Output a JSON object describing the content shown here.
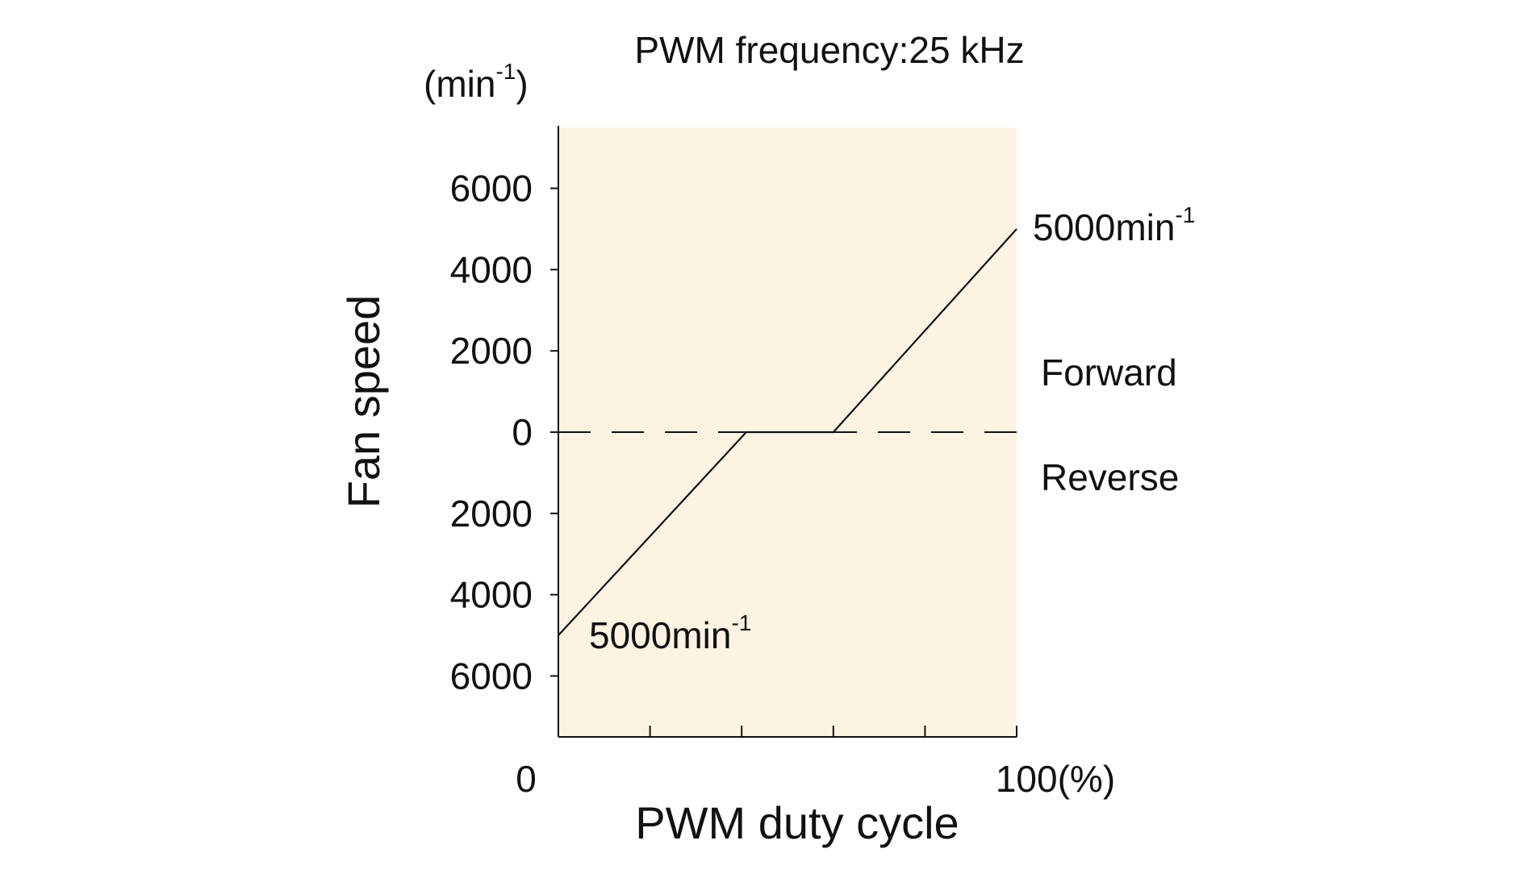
{
  "chart_data": {
    "type": "line",
    "title": "PWM frequency:25 kHz",
    "unit": "(min",
    "unit_sup": "-1",
    "unit_close": ")",
    "ylabel": "Fan speed",
    "xlabel": "PWM duty cycle",
    "x_tick_labels": {
      "start": "0",
      "end": "100(%)"
    },
    "x_ticks": [
      0,
      20,
      40,
      60,
      80,
      100
    ],
    "ylim": [
      -7500,
      7500
    ],
    "xlim": [
      0,
      100
    ],
    "y_ticks": [
      {
        "value": 6000,
        "label": "6000"
      },
      {
        "value": 4000,
        "label": "4000"
      },
      {
        "value": 2000,
        "label": "2000"
      },
      {
        "value": 0,
        "label": "0"
      },
      {
        "value": -2000,
        "label": "2000"
      },
      {
        "value": -4000,
        "label": "4000"
      },
      {
        "value": -6000,
        "label": "6000"
      }
    ],
    "series": [
      {
        "points": [
          [
            0,
            -5000
          ],
          [
            41,
            0
          ],
          [
            60,
            0
          ],
          [
            100,
            5000
          ]
        ]
      }
    ],
    "zero_line": "dashed",
    "region_labels": {
      "above": "Forward",
      "below": "Reverse"
    },
    "annotations": [
      {
        "x": 100,
        "y": 5000,
        "text": "5000min",
        "sup": "-1"
      },
      {
        "x": 0,
        "y": -5000,
        "text": "5000min",
        "sup": "-1"
      }
    ],
    "plot_background": "#fdf3e2",
    "line_color": "#111111",
    "grid": false
  }
}
